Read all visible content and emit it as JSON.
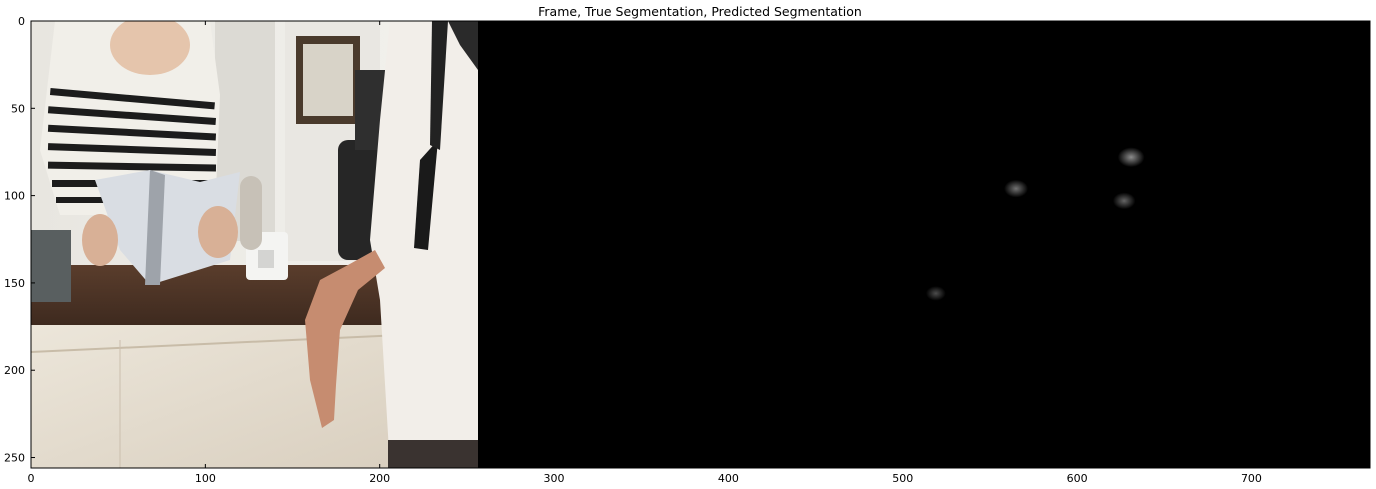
{
  "chart_data": {
    "type": "image",
    "title": "Frame, True Segmentation, Predicted Segmentation",
    "panels": [
      {
        "name": "Frame",
        "x_range": [
          0,
          256
        ],
        "content": "photo"
      },
      {
        "name": "True Segmentation",
        "x_range": [
          256,
          512
        ],
        "content": "all-black"
      },
      {
        "name": "Predicted Segmentation",
        "x_range": [
          512,
          768
        ],
        "content": "mostly-black"
      }
    ],
    "xlim": [
      0,
      768
    ],
    "ylim": [
      256,
      0
    ],
    "xticks": [
      0,
      100,
      200,
      300,
      400,
      500,
      600,
      700
    ],
    "yticks": [
      0,
      50,
      100,
      150,
      200,
      250
    ],
    "predicted_blobs": [
      {
        "x": 631,
        "y": 78,
        "brightness": 0.55
      },
      {
        "x": 565,
        "y": 96,
        "brightness": 0.45
      },
      {
        "x": 627,
        "y": 103,
        "brightness": 0.4
      },
      {
        "x": 519,
        "y": 156,
        "brightness": 0.3
      }
    ],
    "colors": {
      "background": "#000000",
      "blob": "#ffffff"
    }
  }
}
